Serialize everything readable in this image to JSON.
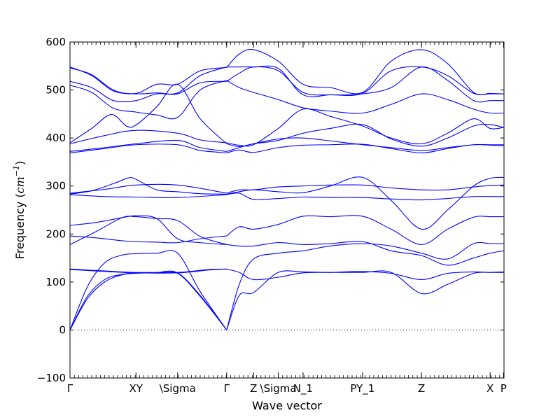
{
  "chart_data": {
    "type": "line",
    "title": "",
    "xlabel": "Wave vector",
    "ylabel": "Frequency ($cm^{-1}$)",
    "ylabel_text": "Frequency (",
    "ylabel_math": "cm",
    "ylabel_exp": "−1",
    "ylabel_close": ")",
    "ylim": [
      -100,
      600
    ],
    "xlim": [
      0,
      1
    ],
    "grid": false,
    "legend": "none",
    "line_color": "#0000ff",
    "zero_line_color": "#000000",
    "y_ticks": [
      -100,
      0,
      100,
      200,
      300,
      400,
      500,
      600
    ],
    "y_tick_labels": [
      "−100",
      "0",
      "100",
      "200",
      "300",
      "400",
      "500",
      "600"
    ],
    "high_symmetry_points": [
      {
        "label": "Γ",
        "x": 0.0
      },
      {
        "label": "XY",
        "x": 0.152
      },
      {
        "label": "\\Sigma",
        "x": 0.248
      },
      {
        "label": "Γ",
        "x": 0.361
      },
      {
        "label": "Z",
        "x": 0.423
      },
      {
        "label": "\\Sigma",
        "x": 0.48
      },
      {
        "label": "N_1",
        "x": 0.537
      },
      {
        "label": "PY_1",
        "x": 0.674
      },
      {
        "label": "Z",
        "x": 0.81
      },
      {
        "label": "X",
        "x": 0.968
      },
      {
        "label": "P",
        "x": 0.999
      }
    ],
    "series": [
      {
        "x": [
          0,
          0.04,
          0.08,
          0.12,
          0.152,
          0.2,
          0.248,
          0.3,
          0.361
        ],
        "values": [
          0,
          65,
          100,
          115,
          118,
          119,
          118,
          70,
          0
        ]
      },
      {
        "x": [
          0,
          0.04,
          0.08,
          0.12,
          0.152,
          0.2,
          0.248,
          0.3,
          0.361
        ],
        "values": [
          0,
          70,
          105,
          116,
          119,
          120,
          119,
          72,
          0
        ]
      },
      {
        "x": [
          0,
          0.04,
          0.08,
          0.12,
          0.152,
          0.2,
          0.248,
          0.3,
          0.361
        ],
        "values": [
          0,
          90,
          140,
          156,
          159,
          160,
          160,
          80,
          0
        ]
      },
      {
        "x": [
          0,
          0.08,
          0.152,
          0.248,
          0.32,
          0.361
        ],
        "values": [
          127,
          123,
          120,
          120,
          126,
          127
        ]
      },
      {
        "x": [
          0,
          0.08,
          0.152,
          0.248,
          0.32,
          0.361
        ],
        "values": [
          126,
          122,
          119,
          119,
          125,
          127
        ]
      },
      {
        "x": [
          0,
          0.06,
          0.12,
          0.152,
          0.2,
          0.248,
          0.3,
          0.361
        ],
        "values": [
          178,
          205,
          234,
          236,
          232,
          228,
          195,
          178
        ]
      },
      {
        "x": [
          0,
          0.06,
          0.12,
          0.152,
          0.2,
          0.248,
          0.3,
          0.361
        ],
        "values": [
          196,
          192,
          186,
          184,
          183,
          182,
          190,
          196
        ]
      },
      {
        "x": [
          0,
          0.06,
          0.12,
          0.152,
          0.2,
          0.248,
          0.3,
          0.361
        ],
        "values": [
          218,
          224,
          234,
          238,
          232,
          190,
          182,
          178
        ]
      },
      {
        "x": [
          0,
          0.08,
          0.152,
          0.248,
          0.361
        ],
        "values": [
          282,
          278,
          277,
          276,
          282
        ]
      },
      {
        "x": [
          0,
          0.08,
          0.152,
          0.248,
          0.361
        ],
        "values": [
          285,
          293,
          302,
          302,
          285
        ]
      },
      {
        "x": [
          0,
          0.05,
          0.1,
          0.135,
          0.152,
          0.2,
          0.248,
          0.3,
          0.361
        ],
        "values": [
          283,
          290,
          305,
          317,
          314,
          292,
          288,
          284,
          283
        ]
      },
      {
        "x": [
          0,
          0.08,
          0.152,
          0.248,
          0.3,
          0.361
        ],
        "values": [
          369,
          378,
          386,
          386,
          374,
          369
        ]
      },
      {
        "x": [
          0,
          0.08,
          0.152,
          0.248,
          0.3,
          0.361
        ],
        "values": [
          372,
          380,
          388,
          395,
          380,
          372
        ]
      },
      {
        "x": [
          0,
          0.08,
          0.152,
          0.248,
          0.3,
          0.361
        ],
        "values": [
          388,
          405,
          416,
          410,
          396,
          390
        ]
      },
      {
        "x": [
          0,
          0.05,
          0.095,
          0.13,
          0.152,
          0.2,
          0.248,
          0.3,
          0.361
        ],
        "values": [
          390,
          420,
          449,
          425,
          427,
          465,
          512,
          440,
          388
        ]
      },
      {
        "x": [
          0,
          0.05,
          0.1,
          0.152,
          0.2,
          0.248,
          0.3,
          0.361
        ],
        "values": [
          510,
          495,
          462,
          454,
          448,
          443,
          500,
          520
        ]
      },
      {
        "x": [
          0,
          0.05,
          0.1,
          0.152,
          0.2,
          0.248,
          0.3,
          0.361
        ],
        "values": [
          518,
          505,
          478,
          478,
          492,
          492,
          515,
          518
        ]
      },
      {
        "x": [
          0,
          0.05,
          0.1,
          0.152,
          0.2,
          0.248,
          0.3,
          0.361
        ],
        "values": [
          548,
          530,
          498,
          492,
          494,
          494,
          530,
          548
        ]
      },
      {
        "x": [
          0,
          0.05,
          0.1,
          0.152,
          0.2,
          0.248,
          0.3,
          0.361
        ],
        "values": [
          546,
          532,
          500,
          493,
          512,
          512,
          540,
          547
        ]
      },
      {
        "x": [
          0.361,
          0.39,
          0.423,
          0.48,
          0.537,
          0.6,
          0.674,
          0.74,
          0.81,
          0.87,
          0.93,
          0.968,
          0.999
        ],
        "values": [
          0,
          95,
          148,
          160,
          165,
          175,
          180,
          175,
          160,
          148,
          180,
          180,
          180
        ]
      },
      {
        "x": [
          0.361,
          0.39,
          0.423,
          0.48,
          0.537,
          0.6,
          0.674,
          0.74,
          0.81,
          0.87,
          0.93,
          0.968,
          0.999
        ],
        "values": [
          0,
          72,
          78,
          120,
          121,
          120,
          120,
          120,
          76,
          95,
          118,
          120,
          121
        ]
      },
      {
        "x": [
          0.361,
          0.39,
          0.423,
          0.48,
          0.537,
          0.6,
          0.674,
          0.74,
          0.81,
          0.87,
          0.93,
          0.968,
          0.999
        ],
        "values": [
          127,
          120,
          105,
          110,
          119,
          120,
          122,
          118,
          105,
          118,
          121,
          120,
          120
        ]
      },
      {
        "x": [
          0.361,
          0.39,
          0.423,
          0.48,
          0.537,
          0.6,
          0.674,
          0.74,
          0.81,
          0.87,
          0.93,
          0.968,
          0.999
        ],
        "values": [
          178,
          175,
          175,
          182,
          178,
          180,
          184,
          165,
          155,
          135,
          150,
          160,
          165
        ]
      },
      {
        "x": [
          0.361,
          0.39,
          0.423,
          0.48,
          0.537,
          0.6,
          0.674,
          0.74,
          0.81,
          0.87,
          0.93,
          0.968,
          0.999
        ],
        "values": [
          196,
          215,
          210,
          220,
          237,
          236,
          237,
          210,
          178,
          210,
          235,
          236,
          236
        ]
      },
      {
        "x": [
          0.361,
          0.39,
          0.423,
          0.48,
          0.537,
          0.6,
          0.674,
          0.74,
          0.81,
          0.87,
          0.93,
          0.968,
          0.999
        ],
        "values": [
          282,
          285,
          272,
          274,
          277,
          276,
          276,
          273,
          271,
          274,
          278,
          278,
          278
        ]
      },
      {
        "x": [
          0.361,
          0.39,
          0.423,
          0.48,
          0.537,
          0.6,
          0.674,
          0.74,
          0.81,
          0.87,
          0.93,
          0.968,
          0.999
        ],
        "values": [
          285,
          292,
          292,
          298,
          300,
          302,
          302,
          296,
          292,
          292,
          298,
          301,
          302
        ]
      },
      {
        "x": [
          0.361,
          0.39,
          0.423,
          0.48,
          0.537,
          0.6,
          0.674,
          0.74,
          0.81,
          0.87,
          0.93,
          0.968,
          0.999
        ],
        "values": [
          283,
          288,
          292,
          288,
          286,
          300,
          318,
          270,
          210,
          250,
          300,
          316,
          318
        ]
      },
      {
        "x": [
          0.361,
          0.39,
          0.423,
          0.48,
          0.537,
          0.6,
          0.674,
          0.74,
          0.81,
          0.87,
          0.93,
          0.968,
          0.999
        ],
        "values": [
          369,
          375,
          370,
          380,
          385,
          386,
          387,
          378,
          369,
          378,
          386,
          385,
          384
        ]
      },
      {
        "x": [
          0.361,
          0.39,
          0.423,
          0.48,
          0.537,
          0.6,
          0.674,
          0.74,
          0.81,
          0.87,
          0.93,
          0.968,
          0.999
        ],
        "values": [
          372,
          380,
          388,
          398,
          400,
          394,
          386,
          380,
          374,
          380,
          386,
          386,
          386
        ]
      },
      {
        "x": [
          0.361,
          0.39,
          0.423,
          0.48,
          0.537,
          0.6,
          0.674,
          0.74,
          0.81,
          0.87,
          0.93,
          0.968,
          0.999
        ],
        "values": [
          390,
          385,
          386,
          420,
          460,
          445,
          425,
          400,
          388,
          410,
          440,
          420,
          422
        ]
      },
      {
        "x": [
          0.361,
          0.39,
          0.423,
          0.48,
          0.537,
          0.6,
          0.674,
          0.74,
          0.81,
          0.87,
          0.93,
          0.968,
          0.999
        ],
        "values": [
          388,
          382,
          388,
          395,
          410,
          420,
          428,
          398,
          383,
          400,
          425,
          428,
          422
        ]
      },
      {
        "x": [
          0.361,
          0.39,
          0.423,
          0.48,
          0.537,
          0.6,
          0.674,
          0.74,
          0.81,
          0.87,
          0.93,
          0.968,
          0.999
        ],
        "values": [
          520,
          505,
          495,
          480,
          463,
          456,
          452,
          470,
          492,
          480,
          460,
          452,
          452
        ]
      },
      {
        "x": [
          0.361,
          0.39,
          0.423,
          0.48,
          0.537,
          0.6,
          0.674,
          0.74,
          0.81,
          0.87,
          0.93,
          0.968,
          0.999
        ],
        "values": [
          518,
          535,
          548,
          540,
          495,
          490,
          492,
          505,
          548,
          520,
          478,
          478,
          478
        ]
      },
      {
        "x": [
          0.361,
          0.39,
          0.423,
          0.48,
          0.537,
          0.6,
          0.674,
          0.74,
          0.81,
          0.87,
          0.93,
          0.968,
          0.999
        ],
        "values": [
          548,
          548,
          548,
          545,
          490,
          490,
          493,
          540,
          548,
          530,
          493,
          492,
          492
        ]
      },
      {
        "x": [
          0.361,
          0.39,
          0.423,
          0.48,
          0.537,
          0.6,
          0.674,
          0.74,
          0.81,
          0.87,
          0.93,
          0.968,
          0.999
        ],
        "values": [
          547,
          575,
          584,
          560,
          512,
          505,
          495,
          560,
          584,
          555,
          495,
          493,
          492
        ]
      }
    ]
  }
}
